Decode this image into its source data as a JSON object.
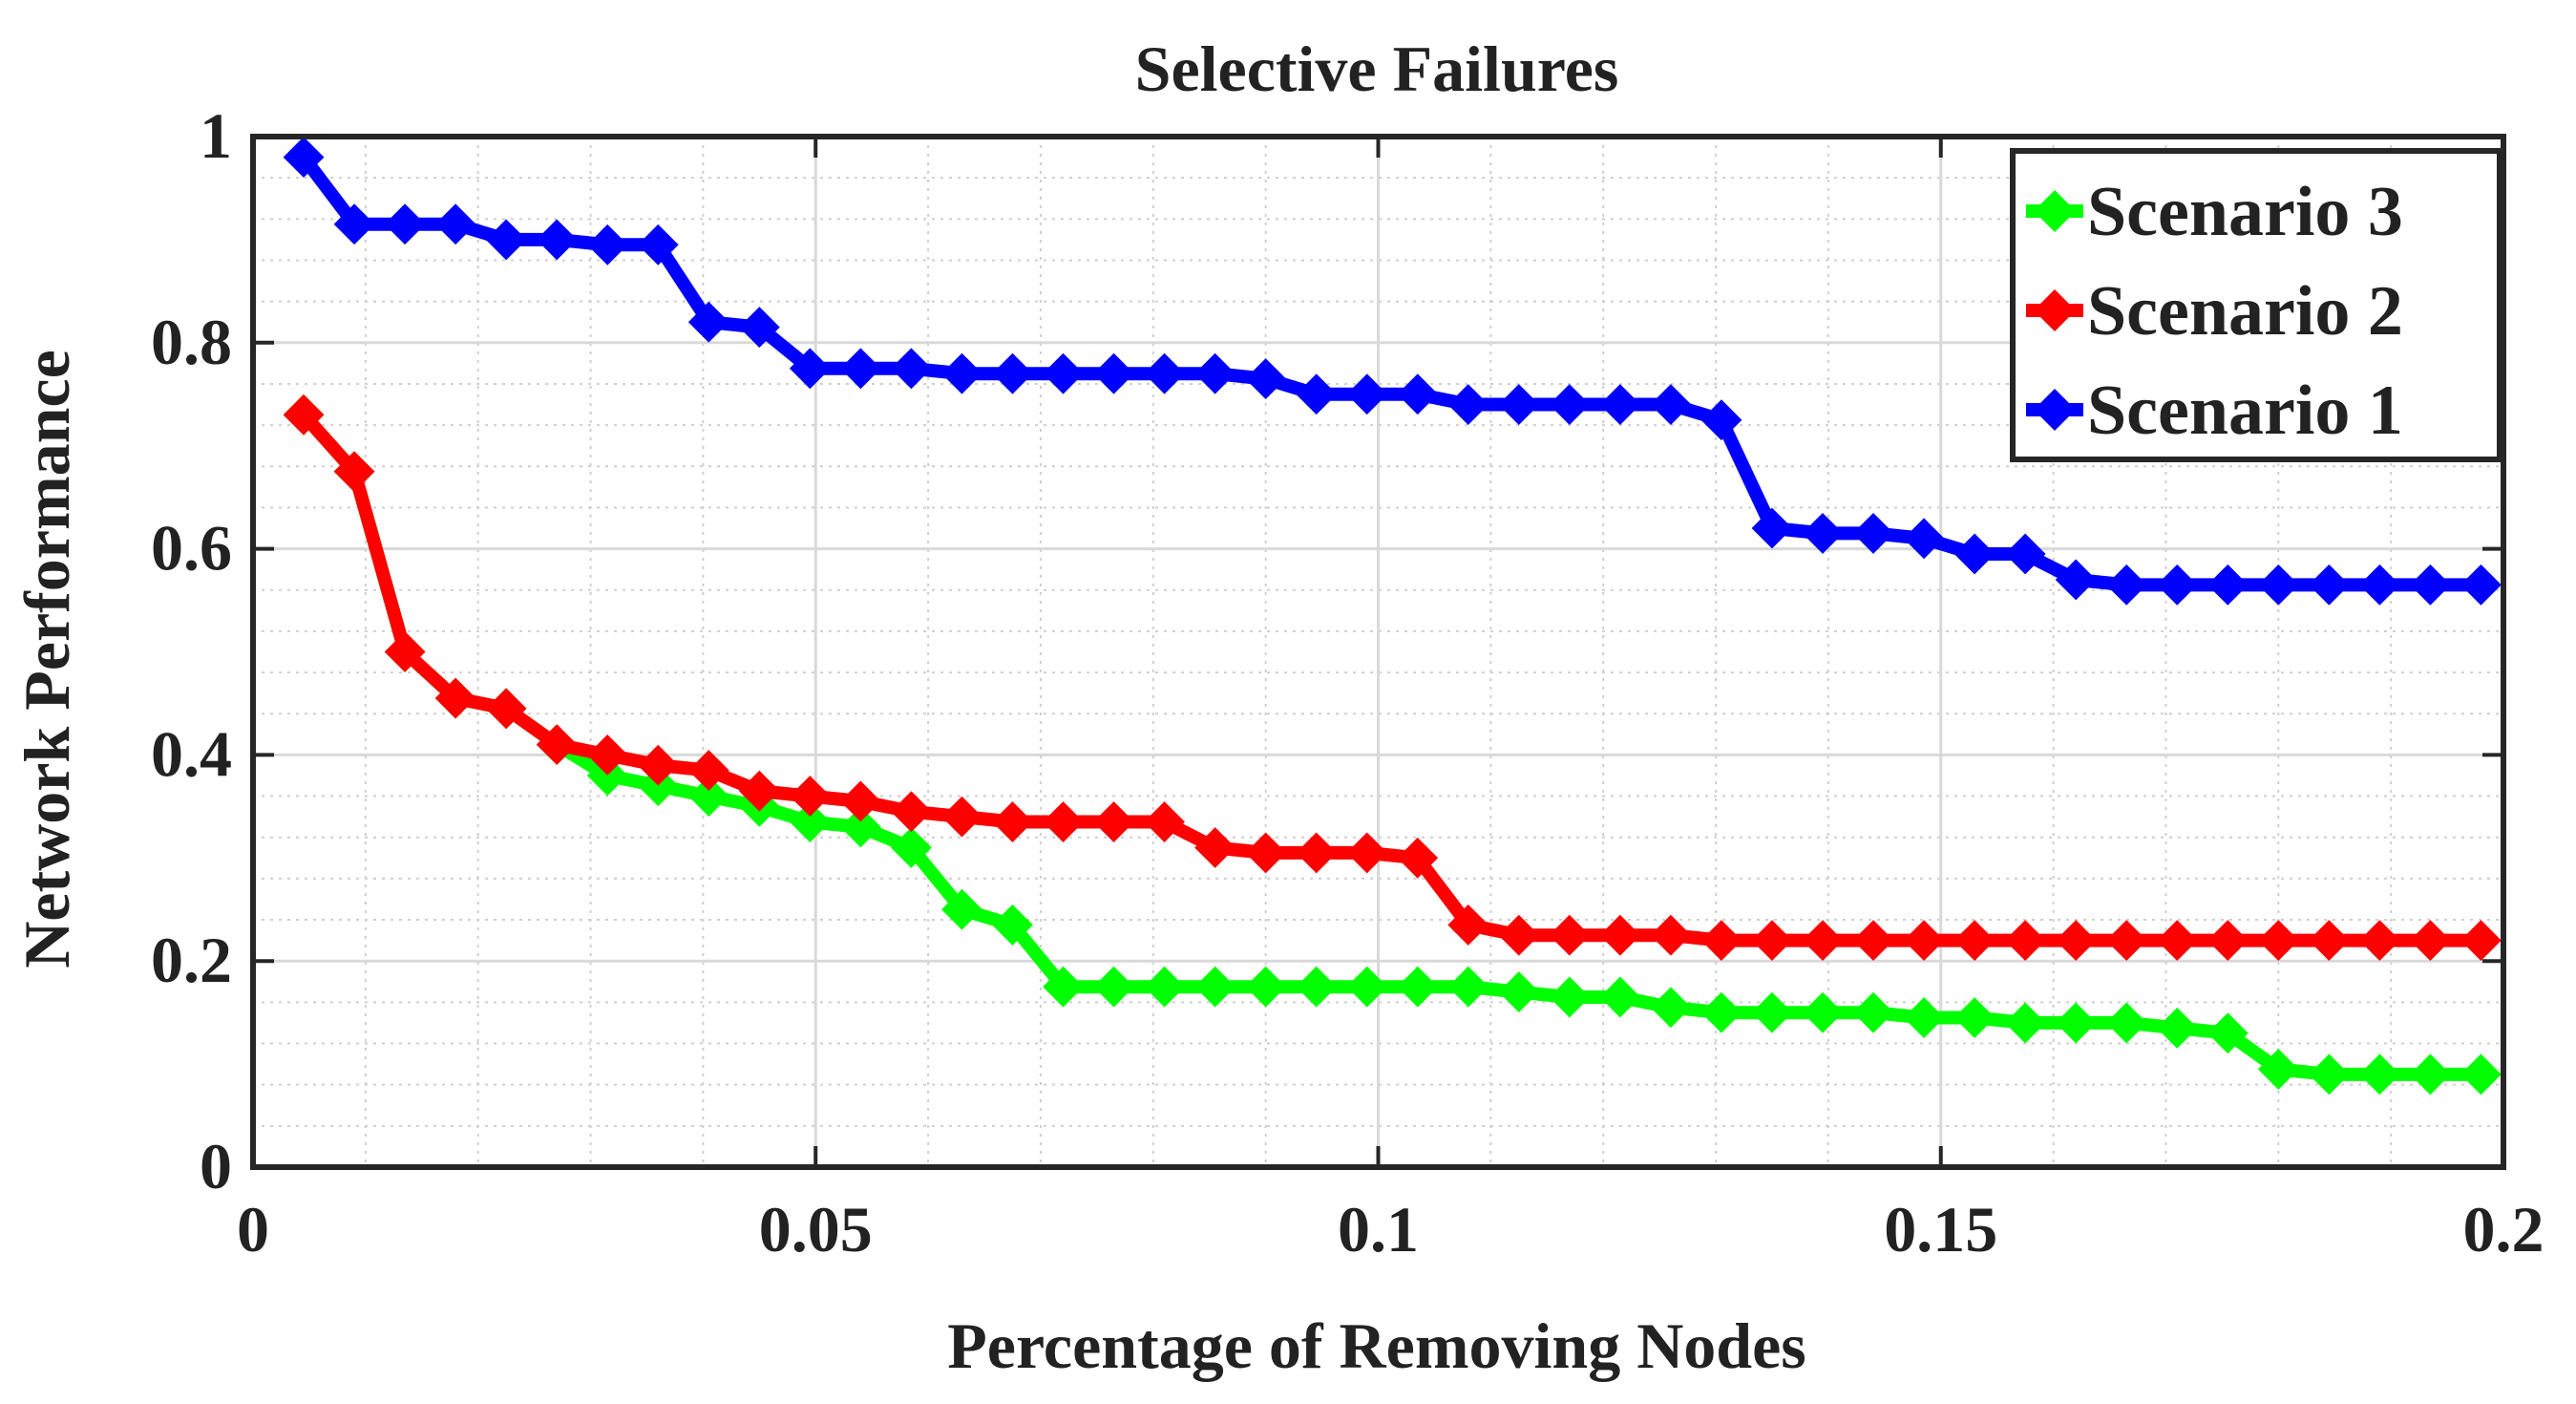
{
  "chart_data": {
    "type": "line",
    "title": "Selective Failures",
    "xlabel": "Percentage of Removing Nodes",
    "ylabel": "Network Performance",
    "xlim": [
      0,
      0.2
    ],
    "ylim": [
      0,
      1
    ],
    "xticks": [
      0,
      0.05,
      0.1,
      0.15,
      0.2
    ],
    "xtick_labels": [
      "0",
      "0.05",
      "0.1",
      "0.15",
      "0.2"
    ],
    "yticks": [
      0,
      0.2,
      0.4,
      0.6,
      0.8,
      1
    ],
    "ytick_labels": [
      "0",
      "0.2",
      "0.4",
      "0.6",
      "0.8",
      "1"
    ],
    "grid": true,
    "minor_grid": true,
    "legend_position": "top-right",
    "marker": "diamond",
    "x": [
      0.0045,
      0.009,
      0.0135,
      0.018,
      0.0225,
      0.027,
      0.0315,
      0.036,
      0.0405,
      0.045,
      0.0495,
      0.054,
      0.0585,
      0.063,
      0.0675,
      0.072,
      0.0765,
      0.081,
      0.0855,
      0.09,
      0.0945,
      0.099,
      0.1035,
      0.108,
      0.1125,
      0.117,
      0.1215,
      0.126,
      0.1305,
      0.135,
      0.1395,
      0.144,
      0.1485,
      0.153,
      0.1575,
      0.162,
      0.1665,
      0.171,
      0.1755,
      0.18,
      0.1845,
      0.189,
      0.1935,
      0.198
    ],
    "series": [
      {
        "name": "Scenario 3",
        "color": "#00ff00",
        "values": [
          0.73,
          0.675,
          0.5,
          0.455,
          0.445,
          0.41,
          0.38,
          0.37,
          0.36,
          0.35,
          0.335,
          0.33,
          0.31,
          0.25,
          0.235,
          0.175,
          0.175,
          0.175,
          0.175,
          0.175,
          0.175,
          0.175,
          0.175,
          0.175,
          0.17,
          0.165,
          0.165,
          0.155,
          0.15,
          0.15,
          0.15,
          0.15,
          0.145,
          0.145,
          0.14,
          0.14,
          0.14,
          0.135,
          0.13,
          0.095,
          0.09,
          0.09,
          0.09,
          0.09
        ]
      },
      {
        "name": "Scenario 2",
        "color": "#ff0000",
        "values": [
          0.73,
          0.675,
          0.5,
          0.455,
          0.445,
          0.41,
          0.4,
          0.39,
          0.385,
          0.365,
          0.36,
          0.355,
          0.345,
          0.34,
          0.335,
          0.335,
          0.335,
          0.335,
          0.31,
          0.305,
          0.305,
          0.305,
          0.3,
          0.235,
          0.225,
          0.225,
          0.225,
          0.225,
          0.22,
          0.22,
          0.22,
          0.22,
          0.22,
          0.22,
          0.22,
          0.22,
          0.22,
          0.22,
          0.22,
          0.22,
          0.22,
          0.22,
          0.22,
          0.22
        ]
      },
      {
        "name": "Scenario 1",
        "color": "#0000ff",
        "values": [
          0.98,
          0.915,
          0.915,
          0.915,
          0.9,
          0.9,
          0.895,
          0.895,
          0.82,
          0.815,
          0.775,
          0.775,
          0.775,
          0.77,
          0.77,
          0.77,
          0.77,
          0.77,
          0.77,
          0.765,
          0.75,
          0.75,
          0.75,
          0.74,
          0.74,
          0.74,
          0.74,
          0.74,
          0.725,
          0.62,
          0.615,
          0.615,
          0.61,
          0.595,
          0.595,
          0.57,
          0.565,
          0.565,
          0.565,
          0.565,
          0.565,
          0.565,
          0.565,
          0.565
        ]
      }
    ]
  }
}
